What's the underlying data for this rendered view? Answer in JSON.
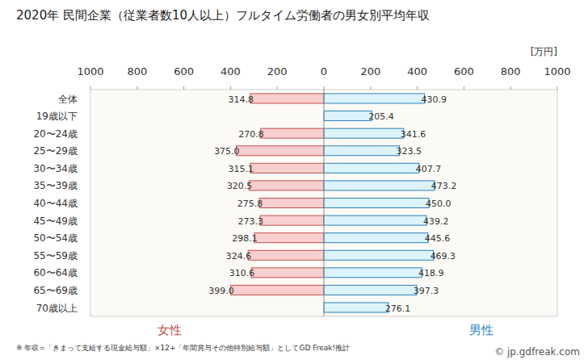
{
  "chart_data": {
    "type": "bar",
    "orientation": "horizontal",
    "title": "2020年 民間企業（従業者数10人以上）フルタイム労働者の男女別平均年収",
    "axis_label": "[万円]",
    "categories": [
      "全体",
      "19歳以下",
      "20〜24歳",
      "25〜29歳",
      "30〜34歳",
      "35〜39歳",
      "40〜44歳",
      "45〜49歳",
      "50〜54歳",
      "55〜59歳",
      "60〜64歳",
      "65〜69歳",
      "70歳以上"
    ],
    "series": [
      {
        "name": "女性",
        "color": "#f7cfcf",
        "values": [
          314.8,
          null,
          270.8,
          375.0,
          315.1,
          320.5,
          275.8,
          273.3,
          298.1,
          324.6,
          310.6,
          399.0,
          null
        ],
        "value_labels": [
          "314.8",
          null,
          "270.8",
          "375.0",
          "315.1",
          "320.5",
          "275.8",
          "273.3",
          "298.1",
          "324.6",
          "310.6",
          "399.0",
          null
        ]
      },
      {
        "name": "男性",
        "color": "#dcf3fb",
        "values": [
          430.9,
          205.4,
          341.6,
          323.5,
          407.7,
          473.2,
          450.0,
          439.2,
          445.6,
          469.3,
          418.9,
          397.3,
          276.1
        ],
        "value_labels": [
          "430.9",
          "205.4",
          "341.6",
          "323.5",
          "407.7",
          "473.2",
          "450.0",
          "439.2",
          "445.6",
          "469.3",
          "418.9",
          "397.3",
          "276.1"
        ]
      }
    ],
    "xlim": [
      0,
      1000
    ],
    "xticks": [
      0,
      200,
      400,
      600,
      800,
      1000
    ],
    "grid": false,
    "data_labels": true,
    "annotations": [
      "※ 年収=「きまって支給する現金給与額」×12+「年間賞与その他特別給与額」としてGD Freak!推計",
      "© jp.gdfreak.com"
    ]
  }
}
